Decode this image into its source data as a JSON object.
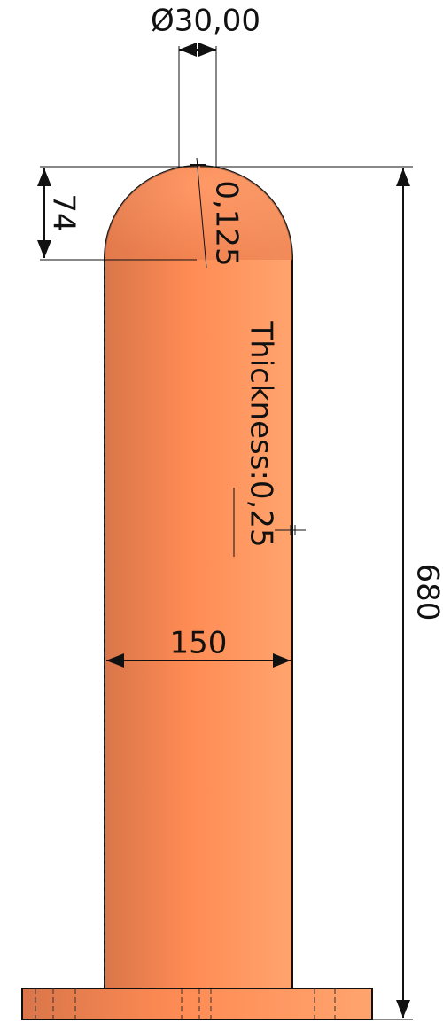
{
  "dimensions": {
    "diameter": "Ø30,00",
    "dome_height": "74",
    "radius": "0,125",
    "thickness": "Thickness:0,25",
    "width": "150",
    "height": "680"
  }
}
